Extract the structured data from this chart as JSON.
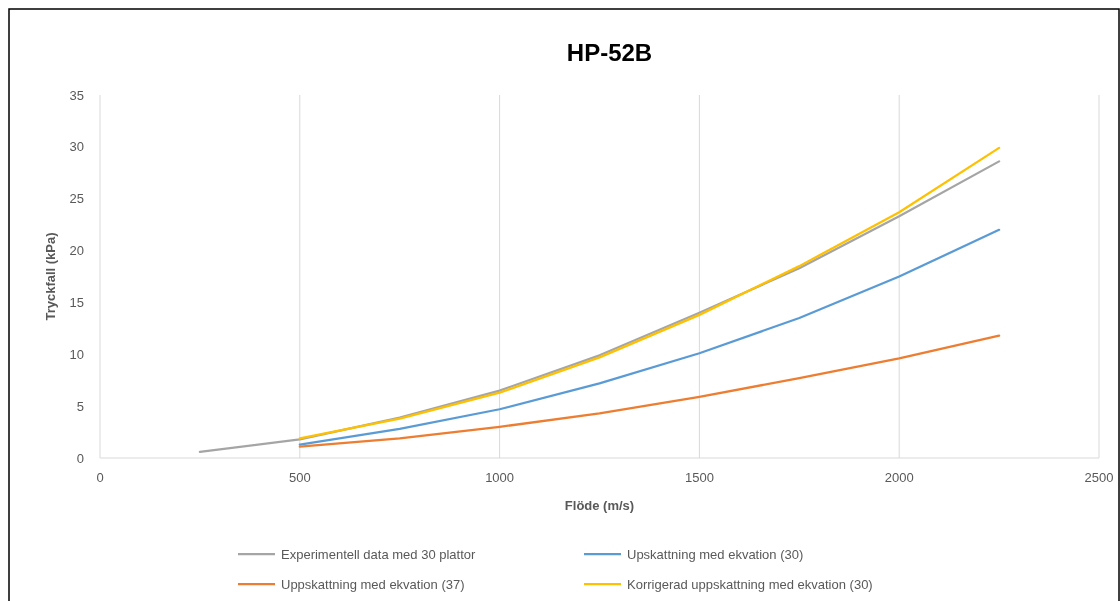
{
  "chart_data": {
    "type": "line",
    "title": "HP-52B",
    "xlabel": "Flöde (m/s)",
    "ylabel": "Tryckfall (kPa)",
    "xlim": [
      0,
      2500
    ],
    "xticks": [
      0,
      500,
      1000,
      1500,
      2000,
      2500
    ],
    "ylim": [
      0,
      35
    ],
    "yticks": [
      0,
      5,
      10,
      15,
      20,
      25,
      30,
      35
    ],
    "grid": "x",
    "legend": "bottom",
    "line_style": "solid",
    "marker": "none",
    "series": [
      {
        "name": "Experimentell data med 30 plattor",
        "color": "#a5a5a5",
        "x": [
          250,
          500,
          750,
          1000,
          1250,
          1500,
          1750,
          2000,
          2250
        ],
        "values": [
          0.6,
          1.8,
          3.9,
          6.5,
          9.9,
          14.0,
          18.3,
          23.3,
          28.6
        ]
      },
      {
        "name": "Upskattning med ekvation (30)",
        "color": "#5b9bd5",
        "x": [
          500,
          750,
          1000,
          1250,
          1500,
          1750,
          2000,
          2250
        ],
        "values": [
          1.3,
          2.8,
          4.7,
          7.2,
          10.1,
          13.5,
          17.5,
          22.0
        ]
      },
      {
        "name": "Uppskattning med ekvation (37)",
        "color": "#ed7d31",
        "x": [
          500,
          750,
          1000,
          1250,
          1500,
          1750,
          2000,
          2250
        ],
        "values": [
          1.1,
          1.9,
          3.0,
          4.3,
          5.9,
          7.7,
          9.6,
          11.8
        ]
      },
      {
        "name": "Korrigerad uppskattning med ekvation (30)",
        "color": "#ffc000",
        "x": [
          500,
          750,
          1000,
          1250,
          1500,
          1750,
          2000,
          2250
        ],
        "values": [
          1.9,
          3.8,
          6.3,
          9.7,
          13.8,
          18.5,
          23.7,
          29.9
        ]
      }
    ]
  }
}
